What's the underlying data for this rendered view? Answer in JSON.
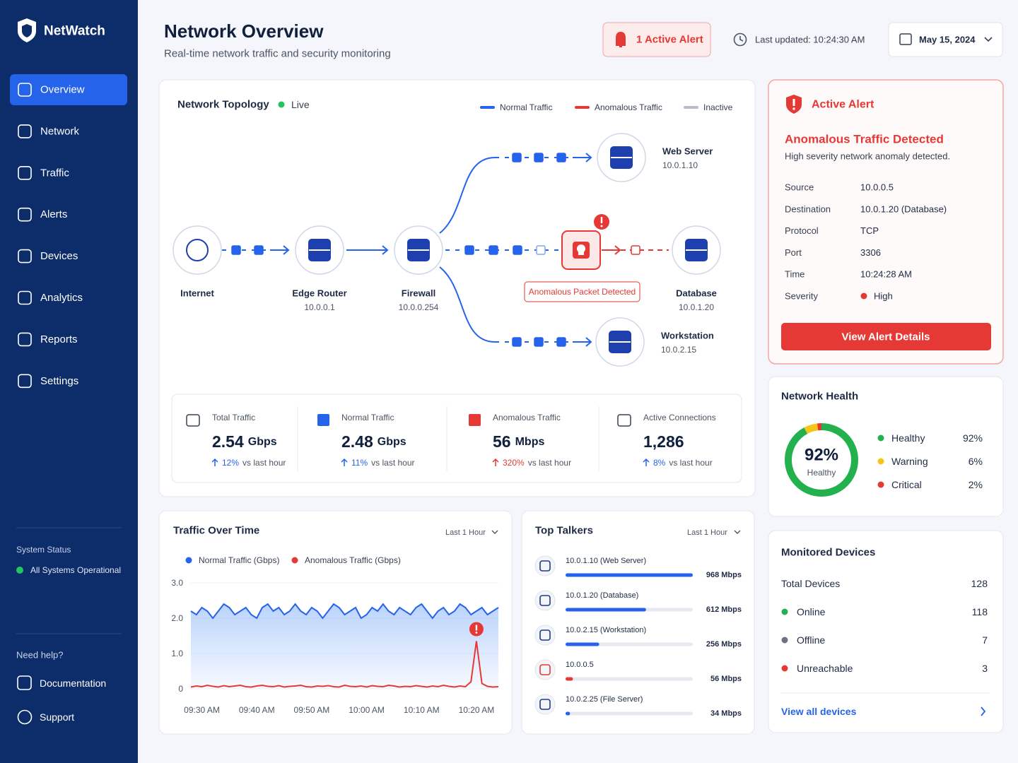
{
  "sidebar": {
    "brand": "NetWatch",
    "nav": [
      "Overview",
      "Network",
      "Traffic",
      "Alerts",
      "Devices",
      "Analytics",
      "Reports",
      "Settings"
    ],
    "status_title": "System Status",
    "status_text": "All Systems Operational",
    "help_title": "Need help?",
    "help_links": [
      "Documentation",
      "Support"
    ]
  },
  "header": {
    "title": "Network Overview",
    "subtitle": "Real-time network traffic and security monitoring",
    "alert_button": "1 Active Alert",
    "last_updated": "Last updated: 10:24:30 AM",
    "date": "May 15, 2024"
  },
  "topology": {
    "title": "Network Topology",
    "status": "Live",
    "legend": [
      {
        "name": "Normal Traffic",
        "color": "#2563eb"
      },
      {
        "name": "Anomalous Traffic",
        "color": "#e53935"
      },
      {
        "name": "Inactive",
        "color": "#b6bcc8"
      }
    ],
    "nodes": [
      {
        "label": "Internet"
      },
      {
        "label": "Edge Router",
        "ip": "10.0.0.1"
      },
      {
        "label": "Firewall",
        "ip": "10.0.0.254"
      },
      {
        "label": "Web Server",
        "ip": "10.0.1.10"
      },
      {
        "label": "Database",
        "ip": "10.0.1.20"
      },
      {
        "label": "Workstation",
        "ip": "10.0.2.15"
      }
    ],
    "anomaly_label": "Anomalous Packet Detected"
  },
  "stats": [
    {
      "label": "Total Traffic",
      "value": 2.54,
      "unit": "Gbps",
      "change": "12%",
      "change_text": "vs last hour",
      "trend_color": "#2563eb"
    },
    {
      "label": "Normal Traffic",
      "value": 2.48,
      "unit": "Gbps",
      "change": "11%",
      "change_text": "vs last hour",
      "trend_color": "#2563eb"
    },
    {
      "label": "Anomalous Traffic",
      "value": 56,
      "unit": "Mbps",
      "change": "320%",
      "change_text": "vs last hour",
      "trend_color": "#e53935"
    },
    {
      "label": "Active Connections",
      "value": "1,286",
      "change": "8%",
      "change_text": "vs last hour",
      "trend_color": "#2563eb"
    }
  ],
  "alert": {
    "title": "Active Alert",
    "heading": "Anomalous Traffic Detected",
    "description": "High severity network anomaly detected.",
    "fields": [
      {
        "label": "Source",
        "value": "10.0.0.5"
      },
      {
        "label": "Destination",
        "value": "10.0.1.20 (Database)"
      },
      {
        "label": "Protocol",
        "value": "TCP"
      },
      {
        "label": "Port",
        "value": 3306
      },
      {
        "label": "Time",
        "value": "10:24:28 AM"
      },
      {
        "label": "Severity",
        "value": "High"
      }
    ],
    "button": "View Alert Details"
  },
  "health": {
    "type": "pie",
    "title": "Network Health",
    "center_label": "Healthy",
    "categories": [
      "Healthy",
      "Warning",
      "Critical"
    ],
    "values": [
      92,
      6,
      2
    ],
    "value_labels": [
      "92%",
      "6%",
      "2%"
    ],
    "colors": [
      "#22b14c",
      "#f5c518",
      "#e53935"
    ]
  },
  "devices": {
    "title": "Monitored Devices",
    "rows": [
      {
        "label": "Total Devices",
        "value": 128
      },
      {
        "label": "Online",
        "value": 118,
        "color": "#22b14c"
      },
      {
        "label": "Offline",
        "value": 7,
        "color": "#6b7280"
      },
      {
        "label": "Unreachable",
        "value": 3,
        "color": "#e53935"
      }
    ],
    "link": "View all devices"
  },
  "traffic_chart": {
    "type": "line",
    "title": "Traffic Over Time",
    "range": "Last 1 Hour",
    "categories": [
      null,
      null,
      "09:30 AM",
      null,
      null,
      null,
      null,
      null,
      null,
      null,
      null,
      null,
      "09:40 AM",
      null,
      null,
      null,
      null,
      null,
      null,
      null,
      null,
      null,
      "09:50 AM",
      null,
      null,
      null,
      null,
      null,
      null,
      null,
      null,
      null,
      "10:00 AM",
      null,
      null,
      null,
      null,
      null,
      null,
      null,
      null,
      null,
      "10:10 AM",
      null,
      null,
      null,
      null,
      null,
      null,
      null,
      null,
      null,
      "10:20 AM",
      null,
      null,
      null,
      null
    ],
    "series": [
      {
        "name": "Normal Traffic (Gbps)",
        "color": "#2563eb",
        "values": [
          2.2,
          2.1,
          2.3,
          2.2,
          2.0,
          2.2,
          2.4,
          2.3,
          2.1,
          2.2,
          2.3,
          2.1,
          2.0,
          2.3,
          2.4,
          2.2,
          2.3,
          2.1,
          2.2,
          2.4,
          2.2,
          2.1,
          2.3,
          2.2,
          2.0,
          2.2,
          2.4,
          2.3,
          2.1,
          2.2,
          2.3,
          2.0,
          2.1,
          2.3,
          2.2,
          2.4,
          2.2,
          2.1,
          2.3,
          2.2,
          2.1,
          2.3,
          2.4,
          2.2,
          2.0,
          2.2,
          2.3,
          2.1,
          2.2,
          2.4,
          2.3,
          2.1,
          2.2,
          2.3,
          2.1,
          2.2,
          2.3
        ]
      },
      {
        "name": "Anomalous Traffic (Gbps)",
        "color": "#e53935",
        "values": [
          0.05,
          0.08,
          0.06,
          0.1,
          0.07,
          0.05,
          0.09,
          0.06,
          0.08,
          0.1,
          0.06,
          0.05,
          0.08,
          0.1,
          0.07,
          0.06,
          0.09,
          0.05,
          0.07,
          0.08,
          0.1,
          0.06,
          0.05,
          0.08,
          0.07,
          0.09,
          0.06,
          0.05,
          0.1,
          0.07,
          0.06,
          0.08,
          0.05,
          0.09,
          0.07,
          0.06,
          0.1,
          0.08,
          0.05,
          0.07,
          0.06,
          0.09,
          0.07,
          0.05,
          0.08,
          0.06,
          0.1,
          0.07,
          0.05,
          0.08,
          0.06,
          0.2,
          1.35,
          0.15,
          0.07,
          0.05,
          0.06
        ]
      }
    ],
    "ylim": [
      0,
      3
    ],
    "yticks": [
      0,
      {
        "value": 1,
        "label": "1.0"
      },
      {
        "value": 2,
        "label": "2.0"
      },
      {
        "value": 3,
        "label": "3.0"
      }
    ]
  },
  "top_talkers": {
    "type": "bar",
    "title": "Top Talkers",
    "range": "Last 1 Hour",
    "categories": [
      "10.0.1.10 (Web Server)",
      "10.0.1.20 (Database)",
      "10.0.2.15 (Workstation)",
      "10.0.0.5",
      "10.0.2.25 (File Server)"
    ],
    "values": [
      968,
      612,
      256,
      56,
      34
    ],
    "value_labels": [
      "968 Mbps",
      "612 Mbps",
      "256 Mbps",
      "56 Mbps",
      "34 Mbps"
    ],
    "colors": [
      "#2563eb",
      "#2563eb",
      "#2563eb",
      "#e53935",
      "#2563eb"
    ]
  }
}
